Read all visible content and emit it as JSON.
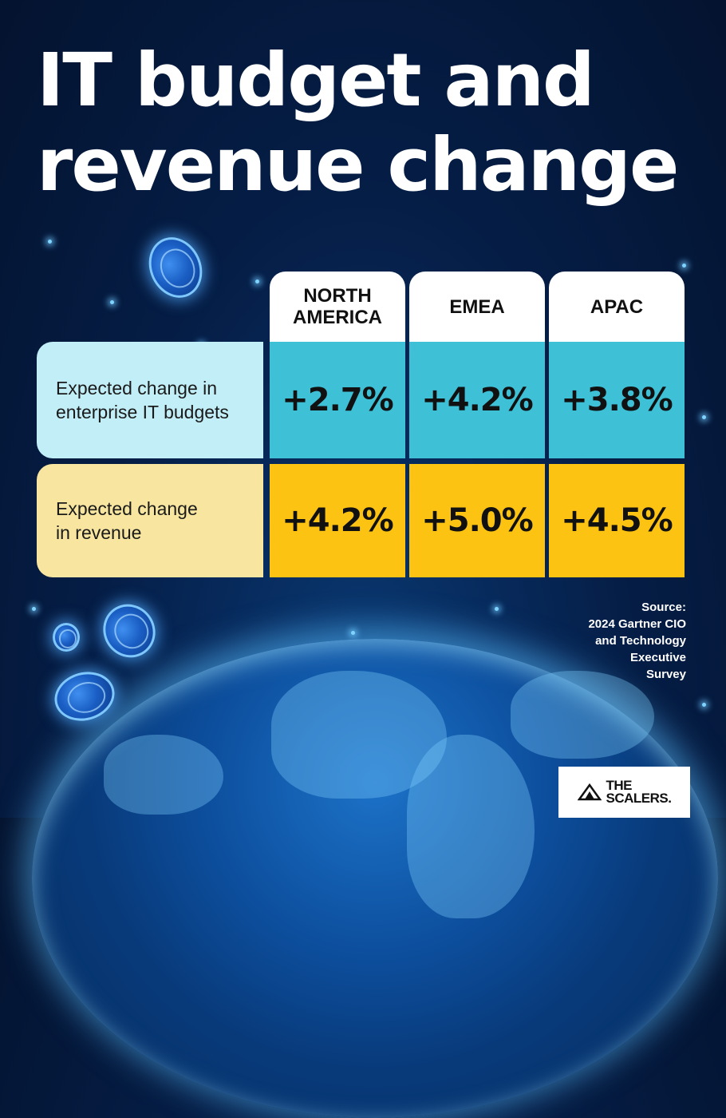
{
  "title": {
    "line1": "IT budget and",
    "line2": "revenue change"
  },
  "chart_data": {
    "type": "table",
    "title": "IT budget and revenue change",
    "columns": [
      "NORTH AMERICA",
      "EMEA",
      "APAC"
    ],
    "rows": [
      {
        "label": "Expected change in enterprise IT budgets",
        "values": [
          "+2.7%",
          "+4.2%",
          "+3.8%"
        ]
      },
      {
        "label": "Expected change in revenue",
        "values": [
          "+4.2%",
          "+5.0%",
          "+4.5%"
        ]
      }
    ]
  },
  "source": {
    "line1": "Source:",
    "line2": "2024 Gartner CIO",
    "line3": "and Technology",
    "line4": "Executive",
    "line5": "Survey"
  },
  "logo": {
    "line1": "THE",
    "line2": "SCALERS."
  },
  "colors": {
    "budget_cell": "#3ec0d6",
    "budget_label": "#c2eef7",
    "revenue_cell": "#fdc313",
    "revenue_label": "#f8e6a0",
    "background": "#051d45"
  }
}
